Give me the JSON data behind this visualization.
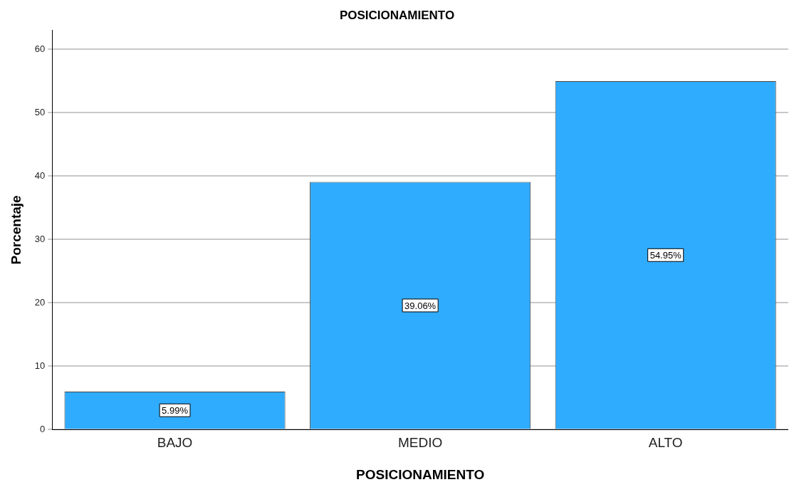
{
  "chart_data": {
    "type": "bar",
    "title": "POSICIONAMIENTO",
    "xlabel": "POSICIONAMIENTO",
    "ylabel": "Porcentaje",
    "categories": [
      "BAJO",
      "MEDIO",
      "ALTO"
    ],
    "values": [
      5.99,
      39.06,
      54.95
    ],
    "value_labels": [
      "5.99%",
      "39.06%",
      "54.95%"
    ],
    "color": "#30acfe",
    "ylim": [
      0,
      63
    ],
    "yticks": [
      0,
      10,
      20,
      30,
      40,
      50,
      60
    ],
    "grid": "y",
    "legend": false
  }
}
